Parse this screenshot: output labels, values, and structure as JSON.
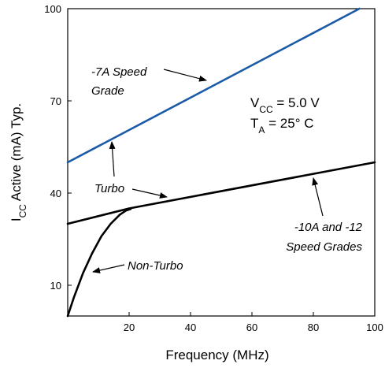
{
  "chart_data": {
    "type": "line",
    "xlabel": "Frequency (MHz)",
    "ylabel_parts": {
      "main": "I",
      "sub": "CC",
      "rest": " Active (mA) Typ."
    },
    "xlim": [
      0,
      100
    ],
    "ylim": [
      0,
      100
    ],
    "x_ticks": [
      20,
      40,
      60,
      80,
      100
    ],
    "y_ticks": [
      10,
      40,
      70,
      100
    ],
    "grid": false,
    "series": [
      {
        "name": "-7A Speed Grade",
        "x": [
          0,
          95
        ],
        "y": [
          50,
          100
        ],
        "color": "#1a5aa6"
      },
      {
        "name": "-10A and -12 Speed Grades",
        "x": [
          0,
          20,
          100
        ],
        "y": [
          30,
          35,
          50
        ],
        "color": "#000000"
      },
      {
        "x": [
          0,
          2,
          5,
          8,
          11,
          14,
          17,
          19,
          20.5
        ],
        "y": [
          0,
          6,
          14,
          20.5,
          26,
          30,
          33,
          34.3,
          34.8
        ],
        "color": "#000000"
      }
    ],
    "annotations": {
      "grade7_line1": "-7A Speed",
      "grade7_line2": "Grade",
      "turbo": "Turbo",
      "nonturbo": "Non-Turbo",
      "grade10_line1": "-10A and -12",
      "grade10_line2": "Speed Grades"
    },
    "conditions": {
      "vcc_main": "V",
      "vcc_sub": "CC",
      "vcc_value": " = 5.0 V",
      "ta_main": "T",
      "ta_sub": "A",
      "ta_value": "  = 25° C"
    }
  }
}
